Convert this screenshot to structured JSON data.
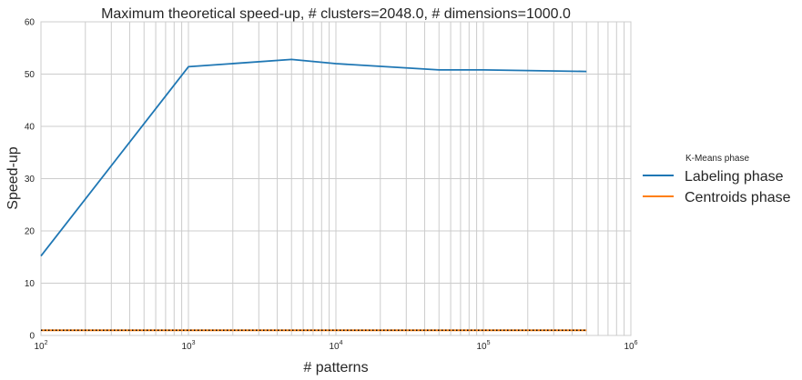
{
  "chart_data": {
    "type": "line",
    "title": "Maximum theoretical speed-up, # clusters=2048.0, # dimensions=1000.0",
    "xlabel": "# patterns",
    "ylabel": "Speed-up",
    "xscale": "log",
    "xlim": [
      100,
      1000000
    ],
    "ylim": [
      0,
      60
    ],
    "yticks": [
      0,
      10,
      20,
      30,
      40,
      50,
      60
    ],
    "xticks": [
      {
        "base": "10",
        "exp": "2"
      },
      {
        "base": "10",
        "exp": "3"
      },
      {
        "base": "10",
        "exp": "4"
      },
      {
        "base": "10",
        "exp": "5"
      },
      {
        "base": "10",
        "exp": "6"
      }
    ],
    "grid": true,
    "legend": {
      "title": "K-Means phase",
      "placement": "right outside"
    },
    "series": [
      {
        "name": "Labeling phase",
        "color": "#1f77b4",
        "x": [
          100,
          1000,
          5000,
          10000,
          50000,
          100000,
          500000
        ],
        "y": [
          15.2,
          51.4,
          52.8,
          52.0,
          50.8,
          50.8,
          50.5
        ]
      },
      {
        "name": "Centroids phase",
        "color": "#ff7f0e",
        "x": [
          100,
          1000,
          5000,
          10000,
          50000,
          100000,
          500000
        ],
        "y": [
          1.0,
          1.0,
          1.0,
          1.0,
          1.0,
          1.0,
          1.0
        ]
      }
    ],
    "reference_line": {
      "y": 1.0,
      "style": "dotted",
      "color": "#000000"
    }
  }
}
